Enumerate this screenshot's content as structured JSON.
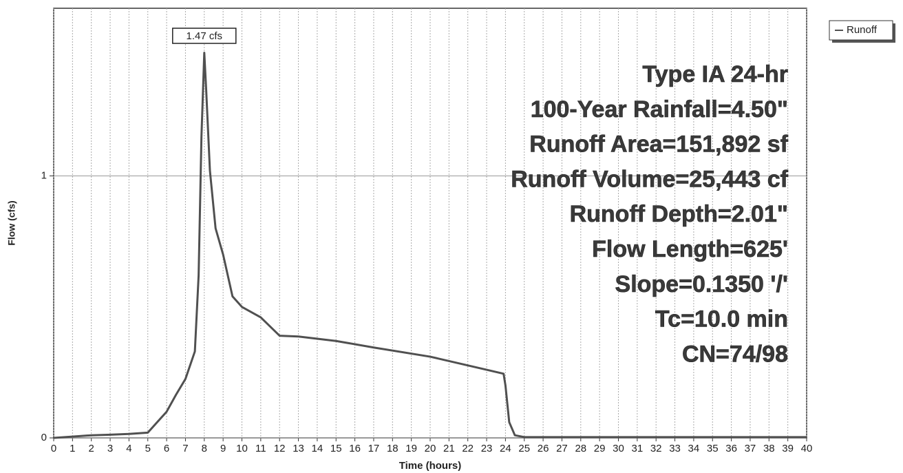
{
  "chart_data": {
    "type": "line",
    "x_label": "Time  (hours)",
    "y_label": "Flow  (cfs)",
    "xlim": [
      0,
      40
    ],
    "ylim": [
      0,
      1.64
    ],
    "xticks": [
      0,
      1,
      2,
      3,
      4,
      5,
      6,
      7,
      8,
      9,
      10,
      11,
      12,
      13,
      14,
      15,
      16,
      17,
      18,
      19,
      20,
      21,
      22,
      23,
      24,
      25,
      26,
      27,
      28,
      29,
      30,
      31,
      32,
      33,
      34,
      35,
      36,
      37,
      38,
      39,
      40
    ],
    "yticks": [
      0,
      1
    ],
    "grid": true,
    "legend_position": "top-right",
    "peak_label": "1.47 cfs",
    "info_lines": [
      "Type IA 24-hr",
      "100-Year Rainfall=4.50\"",
      "Runoff Area=151,892 sf",
      "Runoff Volume=25,443 cf",
      "Runoff Depth=2.01\"",
      "Flow Length=625'",
      "Slope=0.1350 '/'",
      "Tc=10.0 min",
      "CN=74/98"
    ],
    "series": [
      {
        "name": "Runoff",
        "color": "#505050",
        "x": [
          0,
          1,
          2,
          3,
          4,
          5,
          5.5,
          6,
          6.5,
          7,
          7.5,
          7.7,
          7.85,
          8.0,
          8.1,
          8.3,
          8.6,
          9,
          9.5,
          10,
          11,
          12,
          13,
          15,
          17,
          20,
          23,
          23.9,
          24.0,
          24.2,
          24.5,
          25,
          40
        ],
        "values": [
          0,
          0.005,
          0.01,
          0.012,
          0.015,
          0.02,
          0.06,
          0.1,
          0.165,
          0.225,
          0.33,
          0.62,
          1.15,
          1.47,
          1.33,
          1.02,
          0.8,
          0.7,
          0.54,
          0.5,
          0.46,
          0.39,
          0.387,
          0.37,
          0.345,
          0.31,
          0.26,
          0.245,
          0.2,
          0.06,
          0.01,
          0.003,
          0.003
        ]
      }
    ]
  }
}
